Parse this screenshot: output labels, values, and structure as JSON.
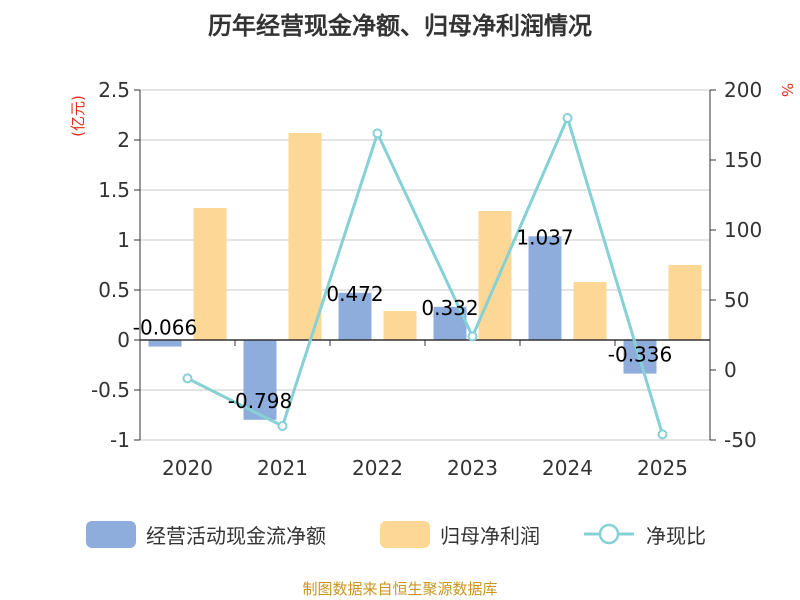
{
  "title": "历年经营现金净额、归母净利润情况",
  "source": "制图数据来自恒生聚源数据库",
  "legend": {
    "cash_flow": "经营活动现金流净额",
    "net_profit": "归母净利润",
    "ratio": "净现比"
  },
  "colors": {
    "cash_flow": "#8eaddc",
    "net_profit": "#fdd795",
    "ratio": "#86d1d6",
    "unit": "#e0301e",
    "source": "#c8961e"
  },
  "chart_data": {
    "type": "bar",
    "categories": [
      "2020",
      "2021",
      "2022",
      "2023",
      "2024",
      "2025"
    ],
    "y_left": {
      "unit": "(亿元)",
      "ylim": [
        -1,
        2.5
      ],
      "ticks": [
        -1,
        -0.5,
        0,
        0.5,
        1,
        1.5,
        2,
        2.5
      ]
    },
    "y_right": {
      "unit": "%",
      "ylim": [
        -50,
        200
      ],
      "ticks": [
        -50,
        0,
        50,
        100,
        150,
        200
      ]
    },
    "grid": true,
    "legend_position": "bottom",
    "series": [
      {
        "name": "经营活动现金流净额",
        "type": "bar",
        "axis": "left",
        "values": [
          -0.066,
          -0.798,
          0.472,
          0.332,
          1.037,
          -0.336
        ],
        "labels": [
          "-0.066",
          "-0.798",
          "0.472",
          "0.332",
          "1.037",
          "-0.336"
        ]
      },
      {
        "name": "归母净利润",
        "type": "bar",
        "axis": "left",
        "values": [
          1.32,
          2.07,
          0.29,
          1.29,
          0.58,
          0.75
        ]
      },
      {
        "name": "净现比",
        "type": "line",
        "axis": "right",
        "values": [
          -6,
          -40,
          169,
          24,
          180,
          -46
        ]
      }
    ]
  }
}
